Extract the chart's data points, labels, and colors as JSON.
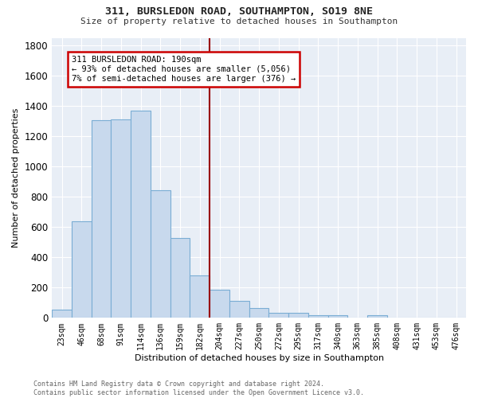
{
  "title": "311, BURSLEDON ROAD, SOUTHAMPTON, SO19 8NE",
  "subtitle": "Size of property relative to detached houses in Southampton",
  "xlabel": "Distribution of detached houses by size in Southampton",
  "ylabel": "Number of detached properties",
  "bar_color": "#c8d9ed",
  "bar_edge_color": "#7aadd4",
  "bg_color": "#e8eef6",
  "fig_bg_color": "#ffffff",
  "grid_color": "#ffffff",
  "categories": [
    "23sqm",
    "46sqm",
    "68sqm",
    "91sqm",
    "114sqm",
    "136sqm",
    "159sqm",
    "182sqm",
    "204sqm",
    "227sqm",
    "250sqm",
    "272sqm",
    "295sqm",
    "317sqm",
    "340sqm",
    "363sqm",
    "385sqm",
    "408sqm",
    "431sqm",
    "453sqm",
    "476sqm"
  ],
  "values": [
    55,
    640,
    1305,
    1310,
    1370,
    845,
    525,
    280,
    185,
    110,
    65,
    35,
    35,
    20,
    20,
    0,
    15,
    0,
    0,
    0,
    0
  ],
  "vline_color": "#990000",
  "annotation_text": "311 BURSLEDON ROAD: 190sqm\n← 93% of detached houses are smaller (5,056)\n7% of semi-detached houses are larger (376) →",
  "annotation_box_color": "#ffffff",
  "annotation_edge_color": "#cc0000",
  "footer_text": "Contains HM Land Registry data © Crown copyright and database right 2024.\nContains public sector information licensed under the Open Government Licence v3.0.",
  "ylim": [
    0,
    1850
  ],
  "yticks": [
    0,
    200,
    400,
    600,
    800,
    1000,
    1200,
    1400,
    1600,
    1800
  ]
}
